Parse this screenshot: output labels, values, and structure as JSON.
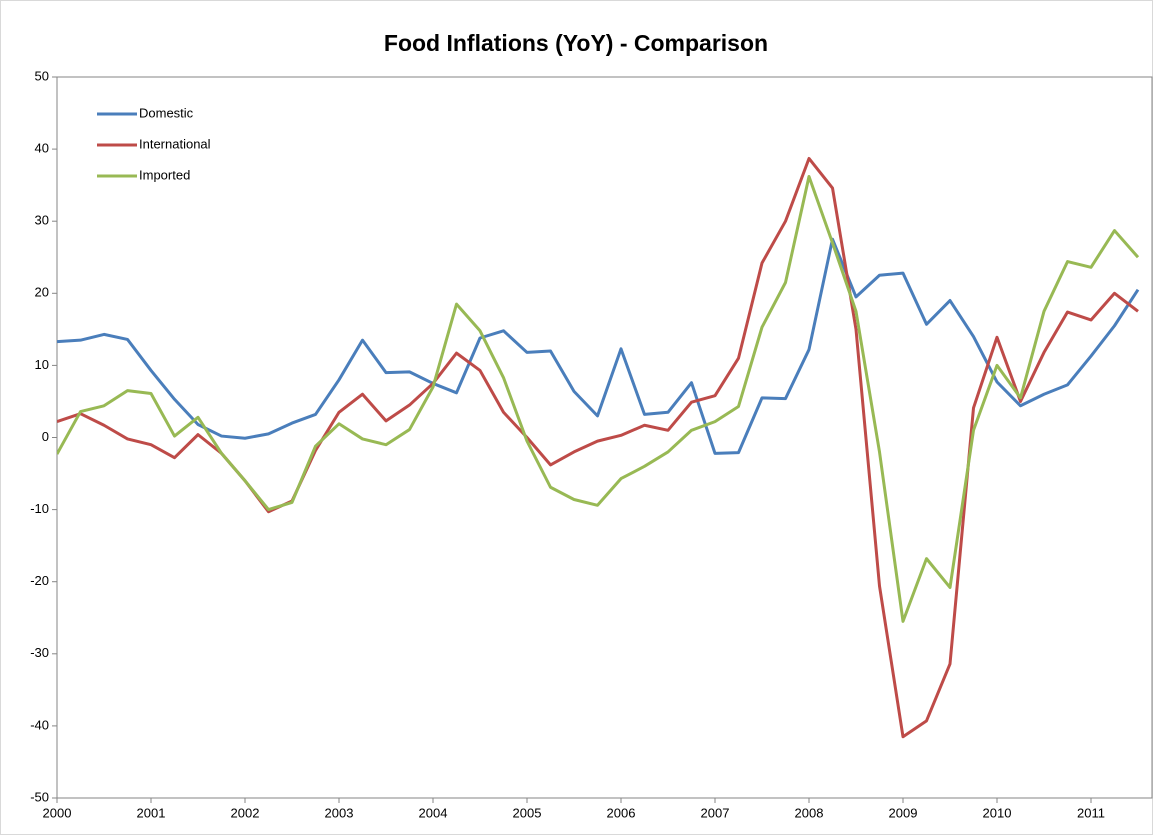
{
  "chart_data": {
    "type": "line",
    "title": "Food Inflations (YoY) - Comparison",
    "categories": [
      "2000",
      null,
      null,
      null,
      "2001",
      null,
      null,
      null,
      "2002",
      null,
      null,
      null,
      "2003",
      null,
      null,
      null,
      "2004",
      null,
      null,
      null,
      "2005",
      null,
      null,
      null,
      "2006",
      null,
      null,
      null,
      "2007",
      null,
      null,
      null,
      "2008",
      null,
      null,
      null,
      "2009",
      null,
      null,
      null,
      "2010",
      null,
      null,
      null,
      "2011",
      null,
      null
    ],
    "series": [
      {
        "name": "Domestic",
        "color": "#4a7ebb",
        "values": [
          13.3,
          13.5,
          14.3,
          13.6,
          9.3,
          5.3,
          1.8,
          0.2,
          -0.1,
          0.5,
          2.0,
          3.2,
          8.0,
          13.5,
          9.0,
          9.1,
          7.5,
          6.2,
          13.8,
          14.8,
          11.8,
          12.0,
          6.4,
          3.0,
          12.3,
          3.2,
          3.5,
          7.6,
          -2.2,
          -2.1,
          5.5,
          5.4,
          12.2,
          27.5,
          19.5,
          22.5,
          22.8,
          15.7,
          19.0,
          14.0,
          7.7,
          4.4,
          6.0,
          7.3,
          11.3,
          15.5,
          20.5
        ]
      },
      {
        "name": "International",
        "color": "#be4b48",
        "values": [
          2.2,
          3.3,
          1.7,
          -0.2,
          -1.0,
          -2.8,
          0.4,
          -2.2,
          -6.0,
          -10.3,
          -8.8,
          -1.8,
          3.5,
          6.0,
          2.3,
          4.5,
          7.5,
          11.7,
          9.3,
          3.5,
          0.0,
          -3.8,
          -2.0,
          -0.5,
          0.3,
          1.7,
          1.0,
          4.9,
          5.8,
          11.0,
          24.2,
          30.0,
          38.7,
          34.6,
          15.0,
          -20.6,
          -41.5,
          -39.3,
          -31.4,
          4.1,
          13.9,
          5.0,
          11.8,
          17.4,
          16.3,
          20.0,
          17.5
        ]
      },
      {
        "name": "Imported",
        "color": "#98b954",
        "values": [
          -2.3,
          3.6,
          4.4,
          6.5,
          6.1,
          0.2,
          2.8,
          -2.2,
          -6.0,
          -10.0,
          -9.0,
          -1.2,
          1.9,
          -0.2,
          -1.0,
          1.1,
          7.0,
          18.5,
          14.8,
          8.3,
          -0.5,
          -6.9,
          -8.6,
          -9.4,
          -5.7,
          -4.0,
          -2.0,
          1.0,
          2.2,
          4.3,
          15.3,
          21.5,
          36.2,
          27.0,
          17.5,
          -2.0,
          -25.5,
          -16.8,
          -20.8,
          1.0,
          10.0,
          5.5,
          17.5,
          24.4,
          23.6,
          28.7,
          25.0
        ]
      }
    ],
    "ylim": [
      -50,
      50
    ],
    "yticks": [
      -50,
      -40,
      -30,
      -20,
      -10,
      0,
      10,
      20,
      30,
      40,
      50
    ],
    "grid": false,
    "legend": "upper left"
  }
}
